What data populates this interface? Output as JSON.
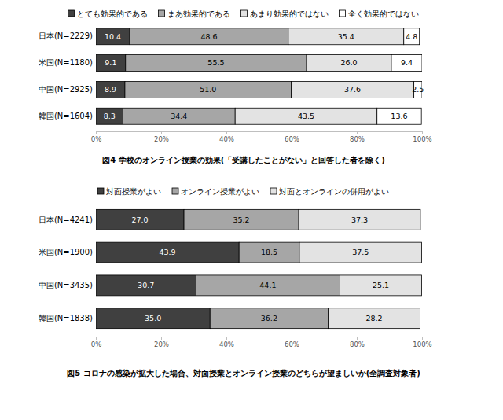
{
  "chart_data": [
    {
      "type": "bar",
      "orientation": "horizontal",
      "stacked": true,
      "data_labels": true,
      "grid": false,
      "legend": "top",
      "title": "図4 学校のオンライン授業の効果(「受講したことがない」と回答した者を除く)",
      "categories": [
        "日本(N=2229)",
        "米国(N=1180)",
        "中国(N=2925)",
        "韓国(N=1604)"
      ],
      "xlim": [
        0,
        100
      ],
      "xticks": [
        {
          "value": 0,
          "label": "0%"
        },
        {
          "value": 20,
          "label": "20%"
        },
        {
          "value": 40,
          "label": "40%"
        },
        {
          "value": 60,
          "label": "60%"
        },
        {
          "value": 80,
          "label": "80%"
        },
        {
          "value": 100,
          "label": "100%"
        }
      ],
      "series": [
        {
          "name": "とても効果的である",
          "color": "#404040",
          "values": [
            10.4,
            9.1,
            8.9,
            8.3
          ],
          "value_labels": [
            "10.4",
            "9.1",
            "8.9",
            "8.3"
          ]
        },
        {
          "name": "まあ効果的である",
          "color": "#a6a6a6",
          "values": [
            48.6,
            55.5,
            51.0,
            34.4
          ],
          "value_labels": [
            "48.6",
            "55.5",
            "51.0",
            "34.4"
          ]
        },
        {
          "name": "あまり効果的ではない",
          "color": "#e3e3e3",
          "values": [
            35.4,
            26.0,
            37.6,
            43.5
          ],
          "value_labels": [
            "35.4",
            "26.0",
            "37.6",
            "43.5"
          ]
        },
        {
          "name": "全く効果的ではない",
          "color": "#ffffff",
          "values": [
            4.8,
            9.4,
            2.5,
            13.6
          ],
          "value_labels": [
            "4.8",
            "9.4",
            "2.5",
            "13.6"
          ]
        }
      ]
    },
    {
      "type": "bar",
      "orientation": "horizontal",
      "stacked": true,
      "data_labels": true,
      "grid": false,
      "legend": "top",
      "title": "図5 コロナの感染が拡大した場合、対面授業とオンライン授業のどちらが望ましいか(全調査対象者)",
      "categories": [
        "日本(N=4241)",
        "米国(N=1900)",
        "中国(N=3435)",
        "韓国(N=1838)"
      ],
      "xlim": [
        0,
        100
      ],
      "xticks": [
        {
          "value": 0,
          "label": "0%"
        },
        {
          "value": 20,
          "label": "20%"
        },
        {
          "value": 40,
          "label": "40%"
        },
        {
          "value": 60,
          "label": "60%"
        },
        {
          "value": 80,
          "label": "80%"
        },
        {
          "value": 100,
          "label": "100%"
        }
      ],
      "series": [
        {
          "name": "対面授業がよい",
          "color": "#404040",
          "values": [
            27.0,
            43.9,
            30.7,
            35.0
          ],
          "value_labels": [
            "27.0",
            "43.9",
            "30.7",
            "35.0"
          ]
        },
        {
          "name": "オンライン授業がよい",
          "color": "#a6a6a6",
          "values": [
            35.2,
            18.5,
            44.1,
            36.2
          ],
          "value_labels": [
            "35.2",
            "18.5",
            "44.1",
            "36.2"
          ]
        },
        {
          "name": "対面とオンラインの併用がよい",
          "color": "#e3e3e3",
          "values": [
            37.3,
            37.5,
            25.1,
            28.2
          ],
          "value_labels": [
            "37.3",
            "37.5",
            "25.1",
            "28.2"
          ]
        }
      ]
    }
  ]
}
